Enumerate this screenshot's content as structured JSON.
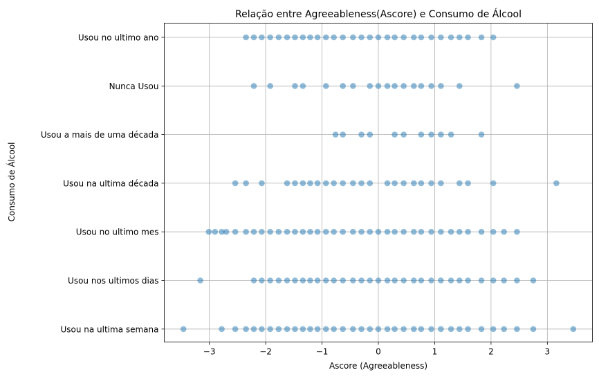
{
  "chart_data": {
    "type": "scatter",
    "title": "Relação entre Agreeableness(Ascore) e Consumo de Álcool",
    "xlabel": "Ascore (Agreeableness)",
    "ylabel": "Consumo de Álcool",
    "xlim": [
      -3.8,
      3.8
    ],
    "xticks": [
      -3,
      -2,
      -1,
      0,
      1,
      2,
      3
    ],
    "xtick_labels": [
      "−3",
      "−2",
      "−1",
      "0",
      "1",
      "2",
      "3"
    ],
    "grid": true,
    "marker_color": "#1f77b4",
    "marker_alpha": 0.5,
    "categories": [
      "Usou na ultima semana",
      "Usou nos ultimos dias",
      "Usou no ultimo mes",
      "Usou na ultima década",
      "Usou a mais de uma década",
      "Nunca Usou",
      "Usou no ultimo ano"
    ],
    "series": [
      {
        "category": "Usou na ultima semana",
        "x": [
          -3.46,
          -2.78,
          -2.54,
          -2.35,
          -2.21,
          -2.07,
          -1.92,
          -1.77,
          -1.62,
          -1.48,
          -1.34,
          -1.21,
          -1.08,
          -0.93,
          -0.79,
          -0.63,
          -0.45,
          -0.3,
          -0.15,
          0.0,
          0.16,
          0.29,
          0.45,
          0.63,
          0.76,
          0.94,
          1.11,
          1.29,
          1.44,
          1.59,
          1.83,
          2.04,
          2.23,
          2.46,
          2.75,
          3.46
        ]
      },
      {
        "category": "Usou nos ultimos dias",
        "x": [
          -3.16,
          -2.21,
          -2.07,
          -1.92,
          -1.77,
          -1.62,
          -1.48,
          -1.34,
          -1.21,
          -1.08,
          -0.93,
          -0.79,
          -0.63,
          -0.45,
          -0.3,
          -0.15,
          0.0,
          0.16,
          0.29,
          0.45,
          0.63,
          0.76,
          0.94,
          1.11,
          1.29,
          1.44,
          1.59,
          1.83,
          2.04,
          2.23,
          2.46,
          2.75
        ]
      },
      {
        "category": "Usou no ultimo mes",
        "x": [
          -3.01,
          -2.9,
          -2.78,
          -2.7,
          -2.54,
          -2.35,
          -2.21,
          -2.07,
          -1.92,
          -1.77,
          -1.62,
          -1.48,
          -1.34,
          -1.21,
          -1.08,
          -0.93,
          -0.79,
          -0.63,
          -0.45,
          -0.3,
          -0.15,
          0.0,
          0.16,
          0.29,
          0.45,
          0.63,
          0.76,
          0.94,
          1.11,
          1.29,
          1.44,
          1.59,
          1.83,
          2.04,
          2.23,
          2.46
        ]
      },
      {
        "category": "Usou na ultima década",
        "x": [
          -2.54,
          -2.35,
          -2.07,
          -1.62,
          -1.48,
          -1.34,
          -1.21,
          -1.08,
          -0.93,
          -0.79,
          -0.63,
          -0.45,
          -0.3,
          -0.15,
          0.16,
          0.29,
          0.45,
          0.63,
          0.76,
          0.94,
          1.11,
          1.44,
          1.59,
          2.04,
          3.16
        ]
      },
      {
        "category": "Usou a mais de uma década",
        "x": [
          -0.76,
          -0.63,
          -0.3,
          -0.15,
          0.29,
          0.45,
          0.76,
          0.94,
          1.11,
          1.29,
          1.83
        ]
      },
      {
        "category": "Nunca Usou",
        "x": [
          -2.21,
          -1.92,
          -1.48,
          -1.34,
          -0.93,
          -0.63,
          -0.45,
          -0.15,
          0.0,
          0.16,
          0.29,
          0.45,
          0.63,
          0.76,
          0.94,
          1.11,
          1.44,
          2.46
        ]
      },
      {
        "category": "Usou no ultimo ano",
        "x": [
          -2.35,
          -2.21,
          -2.07,
          -1.92,
          -1.77,
          -1.62,
          -1.48,
          -1.34,
          -1.21,
          -1.08,
          -0.93,
          -0.79,
          -0.63,
          -0.45,
          -0.3,
          -0.15,
          0.0,
          0.16,
          0.29,
          0.45,
          0.63,
          0.76,
          0.94,
          1.11,
          1.29,
          1.44,
          1.59,
          1.83,
          2.04
        ]
      }
    ]
  }
}
